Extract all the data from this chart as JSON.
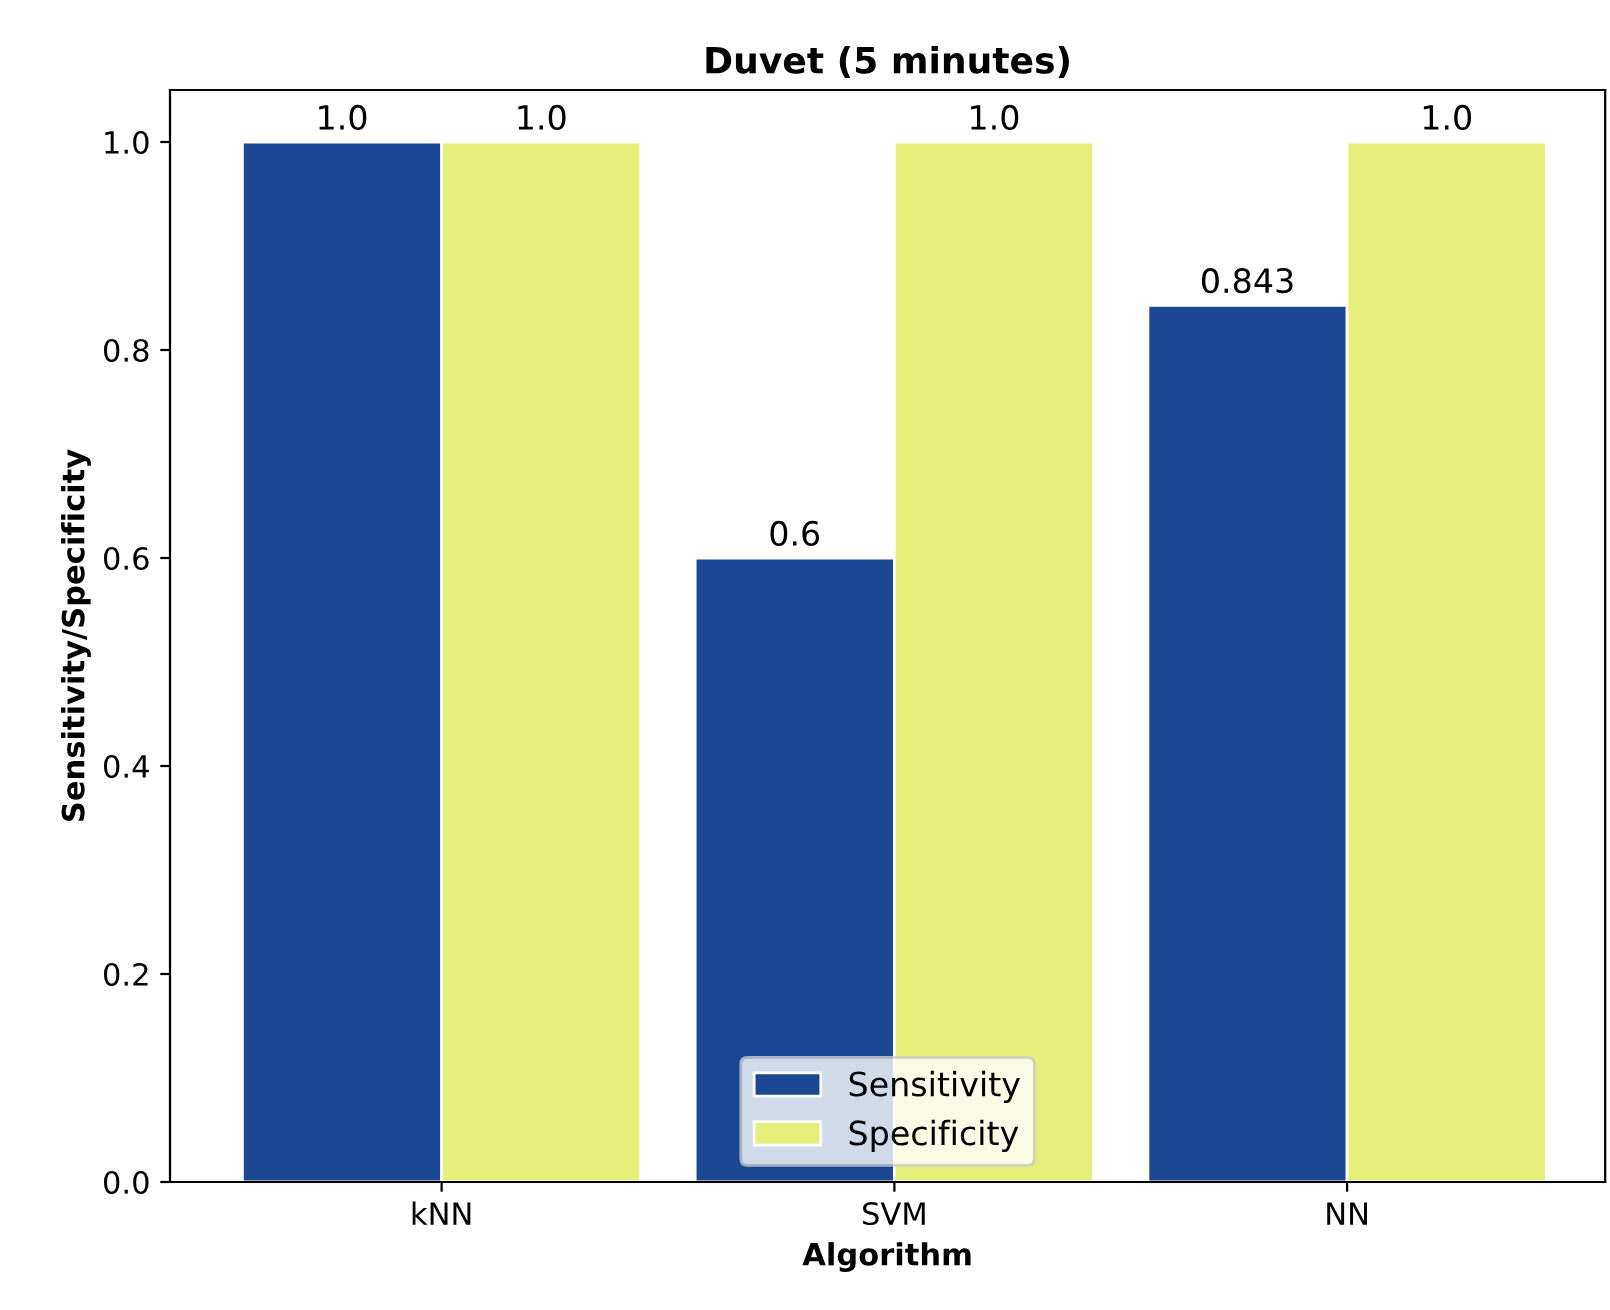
{
  "chart_data": {
    "type": "bar",
    "title": "Duvet (5 minutes)",
    "xlabel": "Algorithm",
    "ylabel": "Sensitivity/Specificity",
    "categories": [
      "kNN",
      "SVM",
      "NN"
    ],
    "series": [
      {
        "name": "Sensitivity",
        "color": "#1c4792",
        "values": [
          1,
          0.6,
          0.843
        ],
        "value_labels": [
          "1.0",
          "0.6",
          "0.843"
        ]
      },
      {
        "name": "Specificity",
        "color": "#e6ef7a",
        "values": [
          1,
          1,
          1
        ],
        "value_labels": [
          "1.0",
          "1.0",
          "1.0"
        ]
      }
    ],
    "ylim": [
      0,
      1.05
    ],
    "yticks": [
      {
        "value": 0,
        "label": "0.0"
      },
      0.2,
      0.4,
      0.6,
      0.8,
      {
        "value": 1,
        "label": "1.0"
      }
    ],
    "legend": "bottom",
    "grid": false
  }
}
